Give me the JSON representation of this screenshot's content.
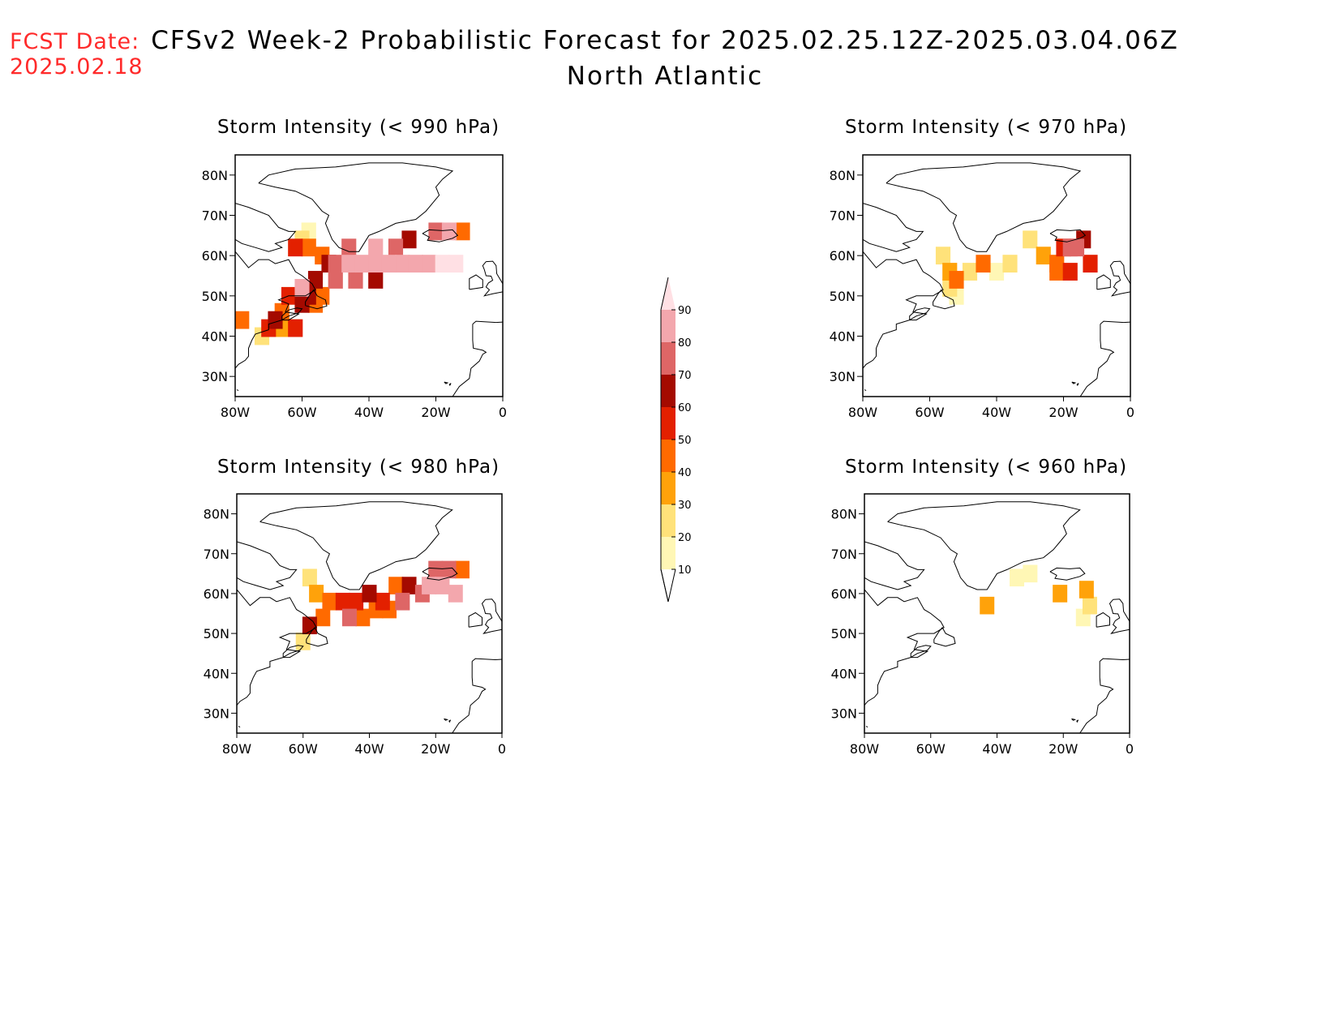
{
  "header": {
    "fcst_label": "FCST Date:",
    "fcst_date": "2025.02.18",
    "title": "CFSv2 Week-2 Probabilistic Forecast for 2025.02.25.12Z-2025.03.04.06Z",
    "region": "North Atlantic"
  },
  "colors": {
    "fcst_text": "#ff2a2a",
    "coast": "#000000",
    "scale": [
      "#fff7b5",
      "#ffe27a",
      "#ffa20a",
      "#ff6a00",
      "#e32000",
      "#a40a00",
      "#de6666",
      "#f3a7ad",
      "#ffe0e4"
    ]
  },
  "legend": {
    "ticks": [
      "10",
      "20",
      "30",
      "40",
      "50",
      "60",
      "70",
      "80",
      "90"
    ]
  },
  "axes": {
    "lon_ticks": [
      "80W",
      "60W",
      "40W",
      "20W",
      "0"
    ],
    "lat_ticks": [
      "80N",
      "70N",
      "60N",
      "50N",
      "40N",
      "30N"
    ],
    "lon_range": [
      -80,
      0
    ],
    "lat_range": [
      25,
      85
    ]
  },
  "panels": [
    {
      "title": "Storm Intensity (< 990 hPa)",
      "cells": [
        [
          -58,
          66,
          15
        ],
        [
          -60,
          64,
          25
        ],
        [
          -62,
          62,
          55
        ],
        [
          -58,
          62,
          45
        ],
        [
          -54,
          60,
          40
        ],
        [
          -52,
          58,
          60
        ],
        [
          -50,
          58,
          70
        ],
        [
          -46,
          58,
          80
        ],
        [
          -42,
          58,
          80
        ],
        [
          -38,
          58,
          85
        ],
        [
          -34,
          58,
          85
        ],
        [
          -30,
          58,
          80
        ],
        [
          -26,
          58,
          85
        ],
        [
          -22,
          58,
          88
        ],
        [
          -18,
          58,
          90
        ],
        [
          -14,
          58,
          92
        ],
        [
          -46,
          62,
          70
        ],
        [
          -38,
          62,
          80
        ],
        [
          -32,
          62,
          70
        ],
        [
          -28,
          64,
          60
        ],
        [
          -20,
          66,
          75
        ],
        [
          -16,
          66,
          85
        ],
        [
          -12,
          66,
          40
        ],
        [
          -50,
          54,
          75
        ],
        [
          -44,
          54,
          70
        ],
        [
          -38,
          54,
          60
        ],
        [
          -56,
          54,
          65
        ],
        [
          -60,
          52,
          80
        ],
        [
          -58,
          50,
          60
        ],
        [
          -54,
          50,
          45
        ],
        [
          -64,
          50,
          50
        ],
        [
          -60,
          48,
          60
        ],
        [
          -56,
          48,
          40
        ],
        [
          -66,
          46,
          45
        ],
        [
          -68,
          44,
          60
        ],
        [
          -70,
          42,
          50
        ],
        [
          -66,
          42,
          30
        ],
        [
          -62,
          42,
          55
        ],
        [
          -72,
          40,
          25
        ],
        [
          -78,
          44,
          45
        ]
      ]
    },
    {
      "title": "Storm Intensity (< 970 hPa)",
      "cells": [
        [
          -56,
          60,
          25
        ],
        [
          -54,
          56,
          35
        ],
        [
          -52,
          54,
          45
        ],
        [
          -48,
          56,
          20
        ],
        [
          -44,
          58,
          40
        ],
        [
          -40,
          56,
          15
        ],
        [
          -36,
          58,
          20
        ],
        [
          -30,
          64,
          20
        ],
        [
          -26,
          60,
          30
        ],
        [
          -22,
          58,
          45
        ],
        [
          -20,
          62,
          55
        ],
        [
          -18,
          62,
          70
        ],
        [
          -16,
          62,
          75
        ],
        [
          -14,
          64,
          60
        ],
        [
          -12,
          58,
          55
        ],
        [
          -18,
          56,
          50
        ],
        [
          -22,
          56,
          40
        ],
        [
          -52,
          50,
          15
        ],
        [
          -54,
          52,
          20
        ]
      ]
    },
    {
      "title": "Storm Intensity (< 980 hPa)",
      "cells": [
        [
          -58,
          64,
          25
        ],
        [
          -56,
          60,
          35
        ],
        [
          -52,
          58,
          45
        ],
        [
          -48,
          58,
          55
        ],
        [
          -44,
          58,
          50
        ],
        [
          -40,
          60,
          60
        ],
        [
          -36,
          58,
          50
        ],
        [
          -32,
          62,
          45
        ],
        [
          -30,
          58,
          70
        ],
        [
          -28,
          62,
          60
        ],
        [
          -24,
          60,
          70
        ],
        [
          -22,
          62,
          80
        ],
        [
          -18,
          62,
          85
        ],
        [
          -14,
          60,
          88
        ],
        [
          -20,
          66,
          75
        ],
        [
          -16,
          66,
          70
        ],
        [
          -12,
          66,
          40
        ],
        [
          -46,
          54,
          75
        ],
        [
          -42,
          54,
          45
        ],
        [
          -38,
          56,
          45
        ],
        [
          -34,
          56,
          40
        ],
        [
          -58,
          52,
          65
        ],
        [
          -54,
          54,
          40
        ],
        [
          -60,
          48,
          25
        ]
      ]
    },
    {
      "title": "Storm Intensity (< 960 hPa)",
      "cells": [
        [
          -43,
          57,
          35
        ],
        [
          -21,
          60,
          30
        ],
        [
          -13,
          61,
          35
        ],
        [
          -12,
          57,
          20
        ],
        [
          -30,
          65,
          15
        ],
        [
          -34,
          64,
          12
        ],
        [
          -14,
          54,
          12
        ]
      ]
    }
  ]
}
